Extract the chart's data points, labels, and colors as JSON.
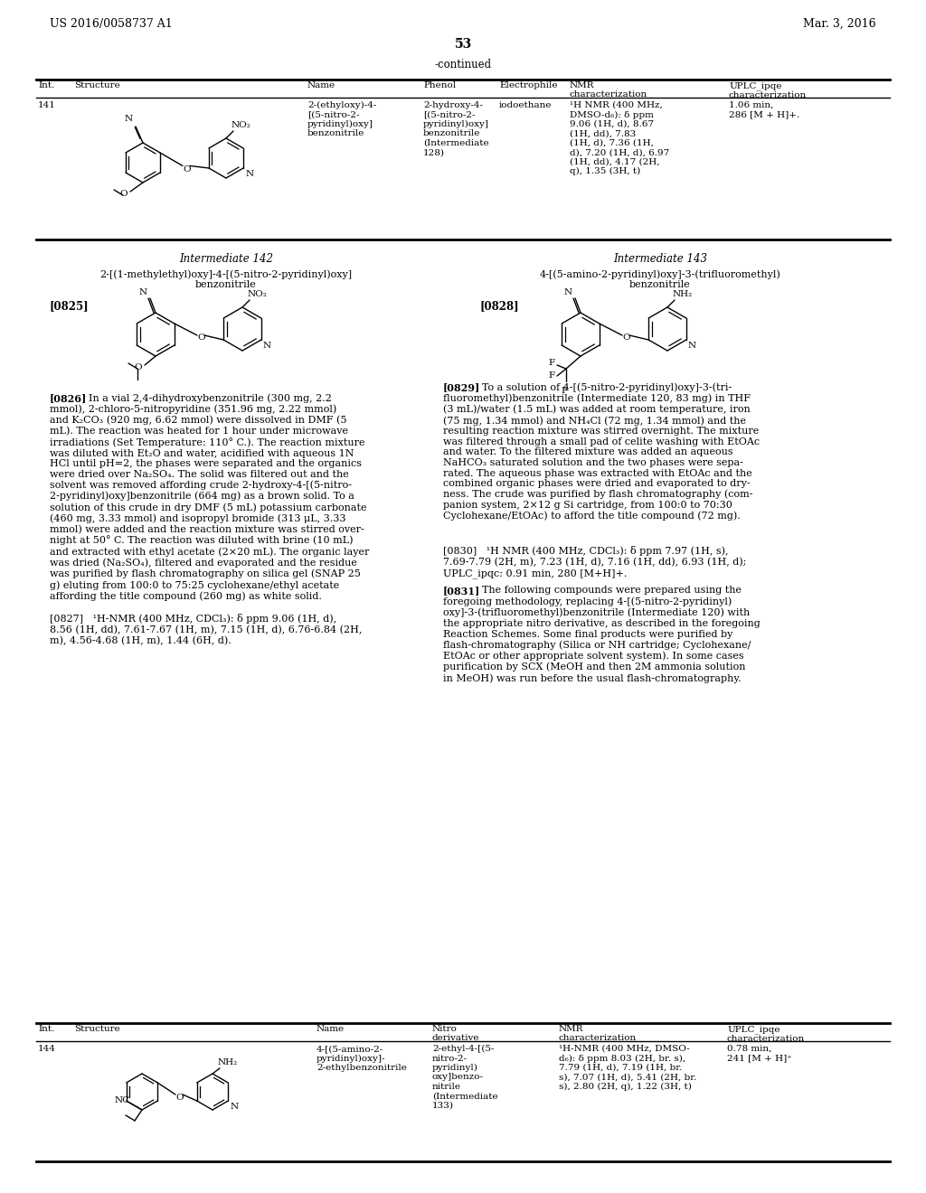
{
  "background_color": "#ffffff",
  "page_number": "53",
  "header_left": "US 2016/0058737 A1",
  "header_right": "Mar. 3, 2016",
  "continued_label": "-continued",
  "row141_int": "141",
  "row141_name": "2-(ethyloxy)-4-\n[(5-nitro-2-\npyridinyl)oxy]\nbenzonitrile",
  "row141_phenol": "2-hydroxy-4-\n[(5-nitro-2-\npyridinyl)oxy]\nbenzonitrile\n(Intermediate\n128)",
  "row141_electrophile": "iodoethane",
  "row141_nmr": "¹H NMR (400 MHz,\nDMSO-d₆): δ ppm\n9.06 (1H, d), 8.67\n(1H, dd), 7.83\n(1H, d), 7.36 (1H,\nd), 7.20 (1H, d), 6.97\n(1H, dd), 4.17 (2H,\nq), 1.35 (3H, t)",
  "row141_uplc": "1.06 min,\n286 [M + H]+.",
  "int142_label": "Intermediate 142",
  "int142_name": "2-[(1-methylethyl)oxy]-4-[(5-nitro-2-pyridinyl)oxy]\nbenzonitrile",
  "int143_label": "Intermediate 143",
  "int143_name": "4-[(5-amino-2-pyridinyl)oxy]-3-(trifluoromethyl)\nbenzonitrile",
  "para0825": "[0825]",
  "para0828": "[0828]",
  "para0826_head": "[0826]",
  "para0826_first": "In a vial 2,4-dihydroxybenzonitrile (300 mg, 2.2",
  "para0826_body": "mmol), 2-chloro-5-nitropyridine (351.96 mg, 2.22 mmol)\nand K₂CO₃ (920 mg, 6.62 mmol) were dissolved in DMF (5\nmL). The reaction was heated for 1 hour under microwave\nirradiations (Set Temperature: 110° C.). The reaction mixture\nwas diluted with Et₂O and water, acidified with aqueous 1N\nHCl until pH=2, the phases were separated and the organics\nwere dried over Na₂SO₄. The solid was filtered out and the\nsolvent was removed affording crude 2-hydroxy-4-[(5-nitro-\n2-pyridinyl)oxy]benzonitrile (664 mg) as a brown solid. To a\nsolution of this crude in dry DMF (5 mL) potassium carbonate\n(460 mg, 3.33 mmol) and isopropyl bromide (313 μL, 3.33\nmmol) were added and the reaction mixture was stirred over-\nnight at 50° C. The reaction was diluted with brine (10 mL)\nand extracted with ethyl acetate (2×20 mL). The organic layer\nwas dried (Na₂SO₄), filtered and evaporated and the residue\nwas purified by flash chromatography on silica gel (SNAP 25\ng) eluting from 100:0 to 75:25 cyclohexane/ethyl acetate\naffording the title compound (260 mg) as white solid.",
  "para0827": "[0827]   ¹H-NMR (400 MHz, CDCl₃): δ ppm 9.06 (1H, d),\n8.56 (1H, dd), 7.61-7.67 (1H, m), 7.15 (1H, d), 6.76-6.84 (2H,\nm), 4.56-4.68 (1H, m), 1.44 (6H, d).",
  "para0829_head": "[0829]",
  "para0829_first": "To a solution of 4-[(5-nitro-2-pyridinyl)oxy]-3-(tri-",
  "para0829_body": "fluoromethyl)benzonitrile (Intermediate 120, 83 mg) in THF\n(3 mL)/water (1.5 mL) was added at room temperature, iron\n(75 mg, 1.34 mmol) and NH₄Cl (72 mg, 1.34 mmol) and the\nresulting reaction mixture was stirred overnight. The mixture\nwas filtered through a small pad of celite washing with EtOAc\nand water. To the filtered mixture was added an aqueous\nNaHCO₃ saturated solution and the two phases were sepa-\nrated. The aqueous phase was extracted with EtOAc and the\ncombined organic phases were dried and evaporated to dry-\nness. The crude was purified by flash chromatography (com-\npanion system, 2×12 g Si cartridge, from 100:0 to 70:30\nCyclohexane/EtOAc) to afford the title compound (72 mg).",
  "para0830": "[0830]   ¹H NMR (400 MHz, CDCl₃): δ ppm 7.97 (1H, s),\n7.69-7.79 (2H, m), 7.23 (1H, d), 7.16 (1H, dd), 6.93 (1H, d);\nUPLC_ipqc: 0.91 min, 280 [M+H]+.",
  "para0831_head": "[0831]",
  "para0831_first": "The following compounds were prepared using the",
  "para0831_body": "foregoing methodology, replacing 4-[(5-nitro-2-pyridinyl)\noxy]-3-(trifluoromethyl)benzonitrile (Intermediate 120) with\nthe appropriate nitro derivative, as described in the foregoing\nReaction Schemes. Some final products were purified by\nflash-chromatography (Silica or NH cartridge; Cyclohexane/\nEtOAc or other appropriate solvent system). In some cases\npurification by SCX (MeOH and then 2M ammonia solution\nin MeOH) was run before the usual flash-chromatography.",
  "row144_int": "144",
  "row144_name": "4-[(5-amino-2-\npyridinyl)oxy]-\n2-ethylbenzonitrile",
  "row144_nitro": "2-ethyl-4-[(5-\nnitro-2-\npyridinyl)\noxy]benzo-\nnitrile\n(Intermediate\n133)",
  "row144_nmr": "¹H-NMR (400 MHz, DMSO-\nd₆): δ ppm 8.03 (2H, br. s),\n7.79 (1H, d), 7.19 (1H, br.\ns), 7.07 (1H, d), 5.41 (2H, br.\ns), 2.80 (2H, q), 1.22 (3H, t)",
  "row144_uplc": "0.78 min,\n241 [M + H]⁺"
}
